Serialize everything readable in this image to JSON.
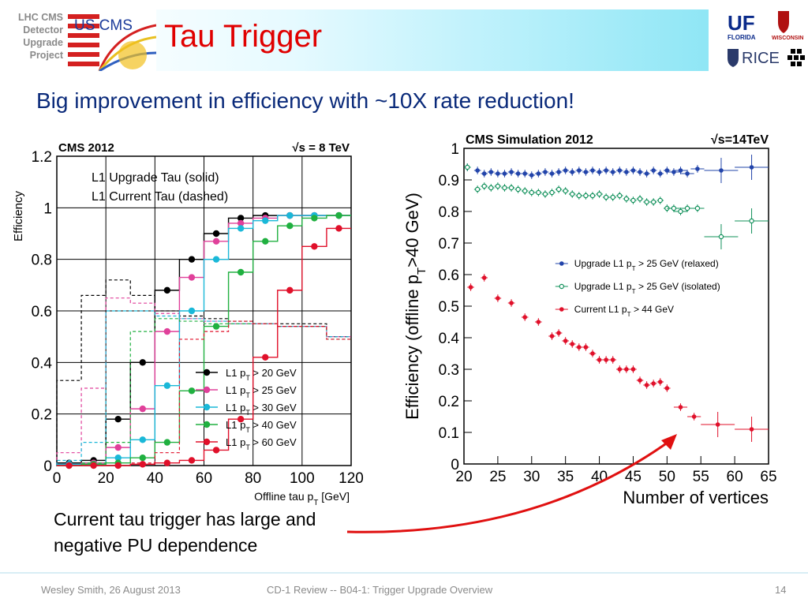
{
  "slide": {
    "side_label": [
      "LHC CMS",
      "Detector",
      "Upgrade",
      "Project"
    ],
    "title": "Tau Trigger",
    "subtitle": "Big improvement in efficiency with ~10X rate reduction!",
    "caption": [
      "Current tau trigger has large and",
      "negative PU dependence"
    ],
    "footer_left": "Wesley Smith, 26 August 2013",
    "footer_center": "CD-1  Review -- B04-1: Trigger Upgrade Overview",
    "page_number": "14",
    "logo_uscms": "US CMS",
    "logo_uf": "UF",
    "logo_florida": "FLORIDA",
    "logo_rice": "RICE",
    "logo_wisconsin": "WISCONSIN"
  },
  "colors": {
    "title": "#e00000",
    "subtitle": "#0a2a7a",
    "black": "#000000",
    "magenta": "#e0409a",
    "cyan": "#1ab8d8",
    "green": "#20b040",
    "red": "#e0102a",
    "blue": "#2244aa",
    "teal": "#10905a"
  },
  "chart_data": [
    {
      "type": "line",
      "title": "CMS 2012",
      "energy_label": "√s = 8 TeV",
      "xlabel": "Offline tau p_T [GeV]",
      "ylabel": "Efficiency",
      "xlim": [
        0,
        120
      ],
      "ylim": [
        0,
        1.2
      ],
      "x_ticks": [
        0,
        20,
        40,
        60,
        80,
        100,
        120
      ],
      "y_ticks": [
        0,
        0.2,
        0.4,
        0.6,
        0.8,
        1,
        1.2
      ],
      "annotations": [
        "L1 Upgrade Tau (solid)",
        "L1 Current Tau (dashed)"
      ],
      "legend_position": "bottom-right",
      "x": [
        5,
        15,
        25,
        35,
        45,
        55,
        65,
        75,
        85,
        95,
        105,
        115
      ],
      "series": [
        {
          "name": "L1 pT > 20 GeV",
          "color": "#000000",
          "solid": [
            0.01,
            0.02,
            0.18,
            0.4,
            0.68,
            0.8,
            0.9,
            0.96,
            0.97,
            0.97,
            0.97,
            0.97
          ],
          "dashed": [
            0.33,
            0.66,
            0.72,
            0.66,
            0.6,
            0.58,
            0.57,
            0.56,
            0.55,
            0.55,
            0.55,
            0.5
          ]
        },
        {
          "name": "L1 pT > 25 GeV",
          "color": "#e0409a",
          "solid": [
            0.005,
            0.01,
            0.07,
            0.22,
            0.52,
            0.73,
            0.87,
            0.94,
            0.96,
            0.97,
            0.97,
            0.97
          ],
          "dashed": [
            0.05,
            0.3,
            0.65,
            0.63,
            0.59,
            0.57,
            0.56,
            0.55,
            0.55,
            0.54,
            0.54,
            0.5
          ]
        },
        {
          "name": "L1 pT > 30 GeV",
          "color": "#1ab8d8",
          "solid": [
            0.005,
            0.005,
            0.03,
            0.1,
            0.31,
            0.6,
            0.8,
            0.92,
            0.95,
            0.97,
            0.97,
            0.97
          ],
          "dashed": [
            0.02,
            0.09,
            0.6,
            0.6,
            0.58,
            0.57,
            0.56,
            0.55,
            0.55,
            0.54,
            0.54,
            0.5
          ]
        },
        {
          "name": "L1 pT > 40 GeV",
          "color": "#20b040",
          "solid": [
            0,
            0.005,
            0.01,
            0.03,
            0.09,
            0.29,
            0.54,
            0.75,
            0.87,
            0.93,
            0.96,
            0.97
          ],
          "dashed": [
            0,
            0.01,
            0.09,
            0.52,
            0.57,
            0.56,
            0.55,
            0.55,
            0.55,
            0.54,
            0.54,
            0.49
          ]
        },
        {
          "name": "L1 pT > 60 GeV",
          "color": "#e0102a",
          "solid": [
            0,
            0,
            0,
            0.005,
            0.01,
            0.02,
            0.06,
            0.18,
            0.42,
            0.68,
            0.85,
            0.92
          ],
          "dashed": [
            0,
            0,
            0,
            0.01,
            0.05,
            0.49,
            0.52,
            0.56,
            0.55,
            0.54,
            0.54,
            0.49
          ]
        }
      ]
    },
    {
      "type": "scatter",
      "title": "CMS Simulation 2012",
      "energy_label": "√s=14TeV",
      "xlabel": "Number of vertices",
      "ylabel": "Efficiency (offline p_T>40 GeV)",
      "xlim": [
        20,
        65
      ],
      "ylim": [
        0,
        1
      ],
      "x_ticks": [
        20,
        25,
        30,
        35,
        40,
        45,
        50,
        55,
        60,
        65
      ],
      "y_ticks": [
        0,
        0.1,
        0.2,
        0.3,
        0.4,
        0.5,
        0.6,
        0.7,
        0.8,
        0.9,
        1
      ],
      "legend_position": "middle-right",
      "series": [
        {
          "name": "Upgrade L1 p_T > 25 GeV (relaxed)",
          "color": "#2244aa",
          "marker": "filled",
          "x": [
            20.5,
            22,
            23,
            24,
            25,
            26,
            27,
            28,
            29,
            30,
            31,
            32,
            33,
            34,
            35,
            36,
            37,
            38,
            39,
            40,
            41,
            42,
            43,
            44,
            45,
            46,
            47,
            48,
            49,
            50,
            51,
            52,
            53,
            54.5,
            58,
            62.5
          ],
          "y": [
            0.94,
            0.93,
            0.92,
            0.925,
            0.92,
            0.92,
            0.925,
            0.92,
            0.92,
            0.915,
            0.92,
            0.925,
            0.92,
            0.925,
            0.93,
            0.925,
            0.93,
            0.925,
            0.93,
            0.925,
            0.93,
            0.925,
            0.93,
            0.925,
            0.93,
            0.925,
            0.92,
            0.93,
            0.92,
            0.93,
            0.925,
            0.93,
            0.92,
            0.935,
            0.93,
            0.94
          ]
        },
        {
          "name": "Upgrade L1 p_T > 25 GeV (isolated)",
          "color": "#10905a",
          "marker": "open",
          "x": [
            20.5,
            22,
            23,
            24,
            25,
            26,
            27,
            28,
            29,
            30,
            31,
            32,
            33,
            34,
            35,
            36,
            37,
            38,
            39,
            40,
            41,
            42,
            43,
            44,
            45,
            46,
            47,
            48,
            49,
            50,
            51,
            52,
            53,
            54.5,
            58,
            62.5
          ],
          "y": [
            0.94,
            0.87,
            0.88,
            0.875,
            0.88,
            0.875,
            0.875,
            0.87,
            0.865,
            0.86,
            0.86,
            0.855,
            0.86,
            0.87,
            0.865,
            0.855,
            0.85,
            0.85,
            0.85,
            0.855,
            0.845,
            0.845,
            0.85,
            0.84,
            0.835,
            0.84,
            0.83,
            0.83,
            0.835,
            0.81,
            0.81,
            0.8,
            0.81,
            0.81,
            0.72,
            0.77
          ]
        },
        {
          "name": "Current L1 p_T > 44 GeV",
          "color": "#e0102a",
          "marker": "filled",
          "x": [
            21,
            23,
            25,
            27,
            29,
            31,
            33,
            34,
            35,
            36,
            37,
            38,
            39,
            40,
            41,
            42,
            43,
            44,
            45,
            46,
            47,
            48,
            49,
            50,
            52,
            54,
            57.5,
            62.5
          ],
          "y": [
            0.56,
            0.59,
            0.525,
            0.51,
            0.465,
            0.45,
            0.405,
            0.415,
            0.39,
            0.38,
            0.37,
            0.37,
            0.35,
            0.33,
            0.33,
            0.33,
            0.3,
            0.3,
            0.3,
            0.265,
            0.25,
            0.255,
            0.26,
            0.24,
            0.18,
            0.15,
            0.125,
            0.11
          ]
        }
      ]
    }
  ]
}
